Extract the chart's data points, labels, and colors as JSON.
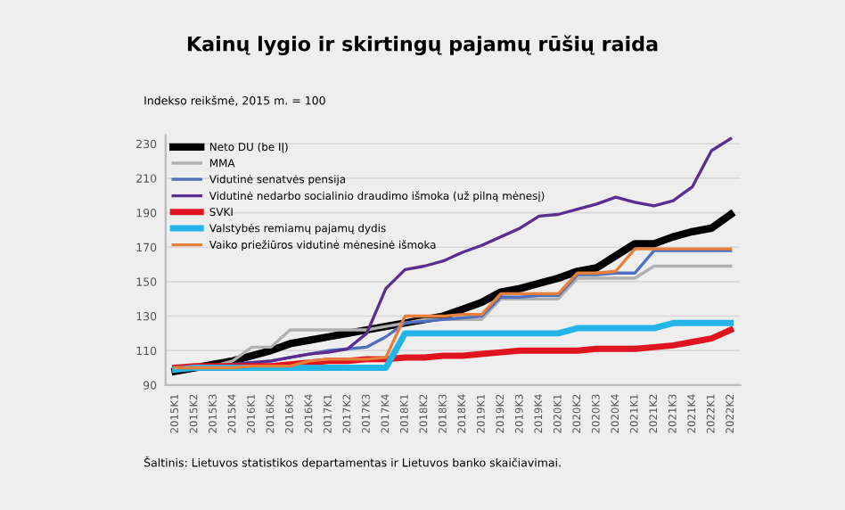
{
  "chart_data": {
    "type": "line",
    "title": "Kainų lygio ir skirtingų pajamų rūšių raida",
    "subtitle": "Indekso reikšmė, 2015 m. = 100",
    "categories": [
      "2015K1",
      "2015K2",
      "2015K3",
      "2015K4",
      "2016K1",
      "2016K2",
      "2016K3",
      "2016K4",
      "2017K1",
      "2017K2",
      "2017K3",
      "2017K4",
      "2018K1",
      "2018K2",
      "2018K3",
      "2018K4",
      "2019K1",
      "2019K2",
      "2019K3",
      "2019K4",
      "2020K1",
      "2020K2",
      "2020K3",
      "2020K4",
      "2021K1",
      "2021K2",
      "2021K3",
      "2021K4",
      "2022K1",
      "2022K2"
    ],
    "series": [
      {
        "name": "Neto DU (be IĮ)",
        "color": "#000000",
        "values": [
          98,
          100,
          102,
          104,
          107,
          110,
          114,
          116,
          118,
          120,
          122,
          124,
          126,
          128,
          130,
          134,
          138,
          144,
          146,
          149,
          152,
          156,
          158,
          165,
          172,
          172,
          176,
          179,
          181,
          189
        ]
      },
      {
        "name": "MMA",
        "color": "#b0b0b0",
        "values": [
          100,
          100,
          101,
          104,
          112,
          112,
          122,
          122,
          122,
          122,
          122,
          124,
          126,
          128,
          128,
          128,
          128,
          140,
          140,
          140,
          140,
          152,
          152,
          152,
          152,
          159,
          159,
          159,
          159,
          159
        ]
      },
      {
        "name": "Vidutinė senatvės pensija",
        "color": "#4f6fbf",
        "values": [
          100,
          100,
          101,
          102,
          103,
          104,
          106,
          108,
          110,
          111,
          112,
          118,
          126,
          127,
          128,
          129,
          130,
          141,
          141,
          142,
          142,
          154,
          154,
          155,
          155,
          168,
          168,
          168,
          168,
          168
        ]
      },
      {
        "name": "Vidutinė nedarbo socialinio draudimo išmoka (už pilną mėnesį)",
        "color": "#5b2d8e",
        "values": [
          100,
          100,
          101,
          102,
          103,
          104,
          106,
          108,
          109,
          111,
          120,
          146,
          157,
          159,
          162,
          167,
          171,
          176,
          181,
          188,
          189,
          192,
          195,
          199,
          196,
          194,
          197,
          205,
          226,
          233
        ]
      },
      {
        "name": "SVKI",
        "color": "#e0141e",
        "values": [
          100,
          101,
          101,
          101,
          101,
          101,
          102,
          103,
          104,
          104,
          105,
          105,
          106,
          106,
          107,
          107,
          108,
          109,
          110,
          110,
          110,
          110,
          111,
          111,
          111,
          112,
          113,
          115,
          117,
          122
        ]
      },
      {
        "name": "Valstybės remiamų pajamų dydis",
        "color": "#23b5e8",
        "values": [
          99,
          100,
          100,
          100,
          100,
          100,
          100,
          100,
          100,
          100,
          100,
          100,
          120,
          120,
          120,
          120,
          120,
          120,
          120,
          120,
          120,
          123,
          123,
          123,
          123,
          123,
          126,
          126,
          126,
          126
        ]
      },
      {
        "name": "Vaiko priežiūros vidutinė mėnesinė išmoka",
        "color": "#e8803a",
        "values": [
          100,
          100,
          100,
          100,
          101,
          101,
          101,
          104,
          105,
          105,
          105,
          106,
          130,
          130,
          130,
          131,
          131,
          143,
          143,
          143,
          143,
          155,
          155,
          156,
          169,
          169,
          169,
          169,
          169,
          169
        ]
      }
    ],
    "ylim": [
      90,
      235
    ],
    "yticks": [
      90,
      110,
      130,
      150,
      170,
      190,
      210,
      230
    ],
    "grid": "y",
    "legend": "top left",
    "marker": "none",
    "line_style": "solid",
    "annotations": [
      "Šaltinis: Lietuvos statistikos departamentas ir Lietuvos banko skaičiavimai."
    ]
  }
}
